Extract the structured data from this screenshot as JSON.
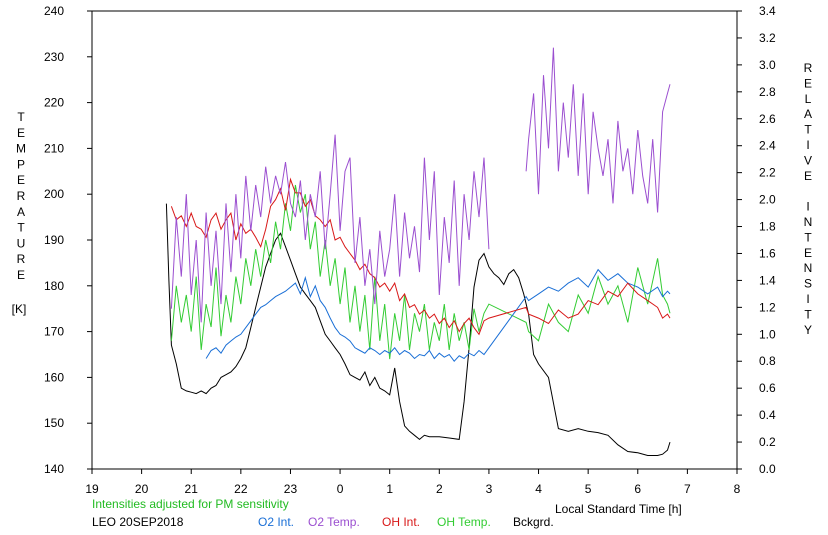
{
  "chart_data": {
    "type": "line",
    "left_axis": {
      "label_letters": [
        "T",
        "E",
        "M",
        "P",
        "E",
        "R",
        "A",
        "T",
        "U",
        "R",
        "E"
      ],
      "unit": "[K]",
      "ylim": [
        140,
        240
      ],
      "ticks": [
        "140",
        "150",
        "160",
        "170",
        "180",
        "190",
        "200",
        "210",
        "220",
        "230",
        "240"
      ]
    },
    "right_axis": {
      "label_letters": [
        "R",
        "E",
        "L",
        "A",
        "T",
        "I",
        "V",
        "E",
        "",
        "I",
        "N",
        "T",
        "E",
        "N",
        "S",
        "I",
        "T",
        "Y"
      ],
      "ylim": [
        0.0,
        3.4
      ],
      "ticks": [
        "0.0",
        "0.2",
        "0.4",
        "0.6",
        "0.8",
        "1.0",
        "1.2",
        "1.4",
        "1.6",
        "1.8",
        "2.0",
        "2.2",
        "2.4",
        "2.6",
        "2.8",
        "3.0",
        "3.2",
        "3.4"
      ]
    },
    "x_axis": {
      "label": "Local Standard Time [h]",
      "xlim": [
        19,
        32
      ],
      "ticks": [
        "19",
        "20",
        "21",
        "22",
        "23",
        "0",
        "1",
        "2",
        "3",
        "4",
        "5",
        "6",
        "7",
        "8"
      ]
    },
    "annotation": "Intensities adjusted for PM sensitivity",
    "station": "LEO 20SEP2018",
    "legend": [
      {
        "name": "O2 Int.",
        "color": "#1a6fd6"
      },
      {
        "name": "O2 Temp.",
        "color": "#9b4fd0"
      },
      {
        "name": "OH Int.",
        "color": "#d81818"
      },
      {
        "name": "OH Temp.",
        "color": "#33cc33"
      },
      {
        "name": "Bckgrd.",
        "color": "#000000"
      }
    ],
    "series": [
      {
        "key": "bckgrd",
        "axis": "right",
        "color": "#000000",
        "x": [
          20.5,
          20.55,
          20.6,
          20.7,
          20.8,
          20.9,
          21.0,
          21.1,
          21.2,
          21.3,
          21.4,
          21.5,
          21.6,
          21.7,
          21.8,
          21.9,
          22.0,
          22.1,
          22.2,
          22.3,
          22.4,
          22.5,
          22.6,
          22.7,
          22.8,
          22.9,
          23.0,
          23.1,
          23.2,
          23.3,
          23.4,
          23.5,
          23.6,
          23.7,
          23.8,
          23.9,
          24.0,
          24.1,
          24.2,
          24.3,
          24.4,
          24.5,
          24.6,
          24.7,
          24.8,
          24.9,
          25.0,
          25.1,
          25.2,
          25.3,
          25.4,
          25.5,
          25.6,
          25.7,
          25.8,
          26.0,
          26.2,
          26.4,
          26.5,
          26.6,
          26.7,
          26.8,
          26.9,
          27.0,
          27.1,
          27.2,
          27.3,
          27.4,
          27.5,
          27.6,
          27.7,
          27.8,
          27.9,
          28.0,
          28.2,
          28.4,
          28.6,
          28.8,
          29.0,
          29.2,
          29.4,
          29.6,
          29.8,
          30.0,
          30.2,
          30.4,
          30.5,
          30.6,
          30.65
        ],
        "y": [
          1.97,
          1.4,
          0.92,
          0.78,
          0.6,
          0.58,
          0.57,
          0.56,
          0.58,
          0.56,
          0.6,
          0.62,
          0.68,
          0.7,
          0.72,
          0.76,
          0.82,
          0.9,
          1.05,
          1.2,
          1.35,
          1.5,
          1.6,
          1.7,
          1.75,
          1.65,
          1.55,
          1.45,
          1.35,
          1.3,
          1.25,
          1.2,
          1.1,
          1.0,
          0.95,
          0.9,
          0.85,
          0.78,
          0.7,
          0.68,
          0.66,
          0.72,
          0.62,
          0.68,
          0.6,
          0.58,
          0.55,
          0.75,
          0.5,
          0.32,
          0.28,
          0.25,
          0.22,
          0.25,
          0.24,
          0.24,
          0.23,
          0.22,
          0.5,
          0.9,
          1.35,
          1.55,
          1.6,
          1.5,
          1.45,
          1.42,
          1.37,
          1.45,
          1.48,
          1.42,
          1.3,
          1.15,
          0.85,
          0.78,
          0.68,
          0.3,
          0.28,
          0.3,
          0.28,
          0.27,
          0.25,
          0.18,
          0.13,
          0.12,
          0.1,
          0.1,
          0.11,
          0.14,
          0.2
        ]
      },
      {
        "key": "o2temp_a",
        "axis": "left",
        "color": "#9b4fd0",
        "x": [
          20.6,
          20.7,
          20.8,
          20.9,
          21.0,
          21.1,
          21.2,
          21.3,
          21.4,
          21.5,
          21.6,
          21.7,
          21.8,
          21.9,
          22.0,
          22.1,
          22.2,
          22.3,
          22.4,
          22.5,
          22.6,
          22.7,
          22.8,
          22.9,
          23.0,
          23.1,
          23.2,
          23.3,
          23.4,
          23.5,
          23.6,
          23.7,
          23.8,
          23.9,
          24.0,
          24.1,
          24.2,
          24.3,
          24.4,
          24.5,
          24.6,
          24.7,
          24.8,
          24.9,
          25.0,
          25.1,
          25.2,
          25.3,
          25.4,
          25.5,
          25.6,
          25.7,
          25.8,
          25.9,
          26.0,
          26.1,
          26.2,
          26.3,
          26.4,
          26.5,
          26.6,
          26.7,
          26.8,
          26.9,
          27.0
        ],
        "y": [
          175,
          195,
          182,
          200,
          178,
          190,
          172,
          196,
          180,
          192,
          176,
          198,
          183,
          200,
          186,
          204,
          192,
          202,
          195,
          206,
          198,
          204,
          200,
          207,
          198,
          195,
          203,
          190,
          200,
          195,
          205,
          188,
          200,
          213,
          192,
          205,
          208,
          185,
          195,
          180,
          188,
          176,
          192,
          182,
          188,
          200,
          182,
          196,
          186,
          193,
          183,
          208,
          190,
          205,
          178,
          195,
          185,
          203,
          180,
          200,
          190,
          205,
          195,
          208,
          188
        ]
      },
      {
        "key": "o2temp_b",
        "axis": "left",
        "color": "#9b4fd0",
        "x": [
          27.75,
          27.8,
          27.9,
          28.0,
          28.1,
          28.2,
          28.3,
          28.4,
          28.5,
          28.6,
          28.7,
          28.8,
          28.9,
          29.0,
          29.1,
          29.2,
          29.3,
          29.4,
          29.5,
          29.6,
          29.7,
          29.8,
          29.9,
          30.0,
          30.1,
          30.2,
          30.3,
          30.4,
          30.5,
          30.6,
          30.65
        ],
        "y": [
          205,
          212,
          222,
          200,
          226,
          210,
          232,
          205,
          220,
          208,
          224,
          204,
          222,
          200,
          218,
          210,
          204,
          212,
          198,
          216,
          205,
          210,
          200,
          214,
          204,
          198,
          212,
          196,
          218,
          222,
          224
        ]
      },
      {
        "key": "ohint",
        "axis": "right",
        "color": "#d81818",
        "x": [
          20.6,
          20.7,
          20.8,
          20.9,
          21.0,
          21.1,
          21.2,
          21.3,
          21.4,
          21.5,
          21.6,
          21.7,
          21.8,
          21.9,
          22.0,
          22.1,
          22.2,
          22.3,
          22.4,
          22.5,
          22.6,
          22.7,
          22.8,
          22.9,
          23.0,
          23.1,
          23.2,
          23.3,
          23.4,
          23.5,
          23.6,
          23.7,
          23.8,
          23.9,
          24.0,
          24.1,
          24.2,
          24.3,
          24.4,
          24.5,
          24.6,
          24.7,
          24.8,
          24.9,
          25.0,
          25.1,
          25.2,
          25.3,
          25.4,
          25.5,
          25.6,
          25.7,
          25.8,
          25.9,
          26.0,
          26.1,
          26.2,
          26.3,
          26.4,
          26.5,
          26.6,
          26.7,
          26.8,
          26.9,
          27.0,
          27.75,
          27.8,
          28.0,
          28.2,
          28.4,
          28.6,
          28.8,
          29.0,
          29.2,
          29.4,
          29.6,
          29.8,
          30.0,
          30.2,
          30.4,
          30.5,
          30.6,
          30.65
        ],
        "y": [
          1.95,
          1.85,
          1.88,
          1.8,
          1.9,
          1.8,
          1.78,
          1.72,
          1.85,
          1.9,
          1.78,
          1.85,
          1.9,
          1.7,
          1.82,
          1.75,
          1.78,
          1.72,
          1.65,
          1.78,
          1.95,
          2.0,
          2.08,
          1.92,
          2.15,
          2.05,
          2.05,
          1.95,
          2.0,
          1.88,
          1.85,
          1.8,
          1.85,
          1.7,
          1.72,
          1.65,
          1.6,
          1.55,
          1.48,
          1.52,
          1.45,
          1.42,
          1.35,
          1.38,
          1.32,
          1.38,
          1.25,
          1.3,
          1.2,
          1.22,
          1.15,
          1.18,
          1.12,
          1.15,
          1.08,
          1.12,
          1.05,
          1.1,
          1.02,
          1.08,
          1.12,
          1.05,
          1.0,
          1.1,
          1.12,
          1.2,
          1.15,
          1.12,
          1.08,
          1.18,
          1.12,
          1.15,
          1.25,
          1.22,
          1.32,
          1.28,
          1.38,
          1.3,
          1.25,
          1.2,
          1.12,
          1.15,
          1.12
        ]
      },
      {
        "key": "ohtemp",
        "axis": "left",
        "color": "#33cc33",
        "x": [
          20.6,
          20.7,
          20.8,
          20.9,
          21.0,
          21.1,
          21.2,
          21.3,
          21.4,
          21.5,
          21.6,
          21.7,
          21.8,
          21.9,
          22.0,
          22.1,
          22.2,
          22.3,
          22.4,
          22.5,
          22.6,
          22.7,
          22.8,
          22.9,
          23.0,
          23.1,
          23.2,
          23.3,
          23.4,
          23.5,
          23.6,
          23.7,
          23.8,
          23.9,
          24.0,
          24.1,
          24.2,
          24.3,
          24.4,
          24.5,
          24.6,
          24.7,
          24.8,
          24.9,
          25.0,
          25.1,
          25.2,
          25.3,
          25.4,
          25.5,
          25.6,
          25.7,
          25.8,
          25.9,
          26.0,
          26.1,
          26.2,
          26.3,
          26.4,
          26.5,
          26.6,
          26.7,
          26.8,
          26.9,
          27.0,
          27.75,
          27.8,
          28.0,
          28.2,
          28.4,
          28.6,
          28.8,
          29.0,
          29.2,
          29.4,
          29.6,
          29.8,
          30.0,
          30.2,
          30.4,
          30.5,
          30.6,
          30.65
        ],
        "y": [
          168,
          180,
          172,
          178,
          170,
          182,
          166,
          176,
          171,
          184,
          169,
          178,
          172,
          182,
          176,
          186,
          180,
          188,
          182,
          190,
          185,
          194,
          188,
          198,
          192,
          202,
          196,
          200,
          188,
          194,
          182,
          190,
          180,
          186,
          176,
          184,
          172,
          180,
          170,
          178,
          166,
          182,
          168,
          176,
          164,
          174,
          168,
          178,
          166,
          174,
          170,
          176,
          166,
          172,
          168,
          176,
          166,
          174,
          168,
          172,
          166,
          175,
          170,
          174,
          176,
          172,
          170,
          168,
          176,
          172,
          170,
          178,
          174,
          182,
          176,
          180,
          172,
          184,
          176,
          186,
          178,
          176,
          174
        ]
      },
      {
        "key": "o2int",
        "axis": "right",
        "color": "#1a6fd6",
        "x": [
          21.3,
          21.4,
          21.5,
          21.6,
          21.7,
          21.8,
          21.9,
          22.0,
          22.1,
          22.2,
          22.3,
          22.4,
          22.5,
          22.6,
          22.7,
          22.8,
          22.9,
          23.0,
          23.1,
          23.2,
          23.3,
          23.4,
          23.5,
          23.6,
          23.7,
          23.8,
          23.9,
          24.0,
          24.1,
          24.2,
          24.3,
          24.4,
          24.5,
          24.6,
          24.7,
          24.8,
          24.9,
          25.0,
          25.1,
          25.2,
          25.3,
          25.4,
          25.5,
          25.6,
          25.7,
          25.8,
          25.9,
          26.0,
          26.1,
          26.2,
          26.3,
          26.4,
          26.5,
          26.6,
          26.7,
          26.8,
          26.9,
          27.0,
          27.75,
          27.8,
          28.0,
          28.2,
          28.4,
          28.6,
          28.8,
          29.0,
          29.2,
          29.4,
          29.6,
          29.8,
          30.0,
          30.2,
          30.4,
          30.5,
          30.6,
          30.65
        ],
        "y": [
          0.82,
          0.88,
          0.9,
          0.86,
          0.92,
          0.95,
          0.98,
          1.0,
          1.05,
          1.1,
          1.15,
          1.2,
          1.22,
          1.25,
          1.28,
          1.3,
          1.32,
          1.35,
          1.38,
          1.3,
          1.42,
          1.28,
          1.36,
          1.25,
          1.2,
          1.12,
          1.05,
          1.0,
          0.98,
          0.95,
          0.9,
          0.88,
          0.86,
          0.9,
          0.88,
          0.85,
          0.88,
          0.86,
          0.9,
          0.85,
          0.88,
          0.86,
          0.82,
          0.85,
          0.84,
          0.88,
          0.82,
          0.86,
          0.83,
          0.85,
          0.8,
          0.84,
          0.82,
          0.86,
          0.84,
          0.88,
          0.85,
          0.9,
          1.28,
          1.25,
          1.3,
          1.35,
          1.32,
          1.38,
          1.42,
          1.35,
          1.48,
          1.4,
          1.45,
          1.38,
          1.35,
          1.3,
          1.35,
          1.28,
          1.32,
          1.3
        ]
      }
    ]
  }
}
